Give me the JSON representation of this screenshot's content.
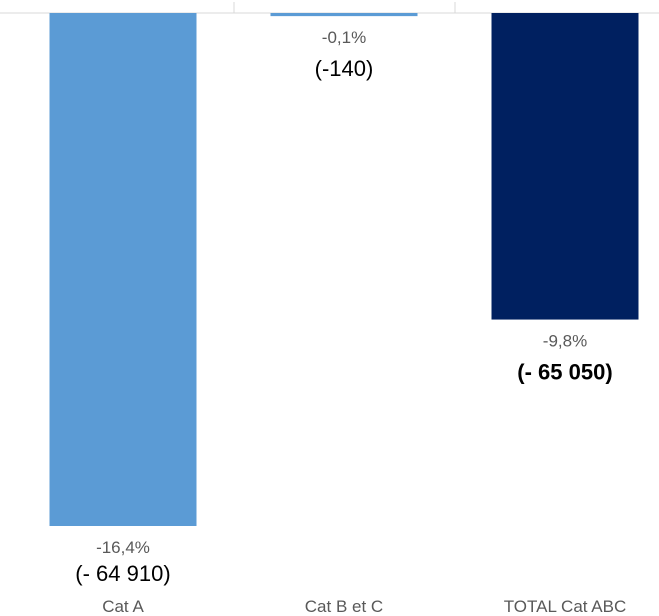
{
  "chart_data": {
    "type": "bar",
    "categories": [
      "Cat A",
      "Cat B et C",
      "TOTAL Cat ABC"
    ],
    "values": [
      -16.4,
      -0.1,
      -9.8
    ],
    "percent_labels": [
      "-16,4%",
      "-0,1%",
      "-9,8%"
    ],
    "absolute_labels": [
      "(- 64 910)",
      "(-140)",
      "(- 65 050)"
    ],
    "absolute_values": [
      -64910,
      -140,
      -65050
    ],
    "ylim": [
      -16.4,
      0
    ],
    "grid": false,
    "colors": [
      "#5b9bd5",
      "#5b9bd5",
      "#002060"
    ]
  }
}
